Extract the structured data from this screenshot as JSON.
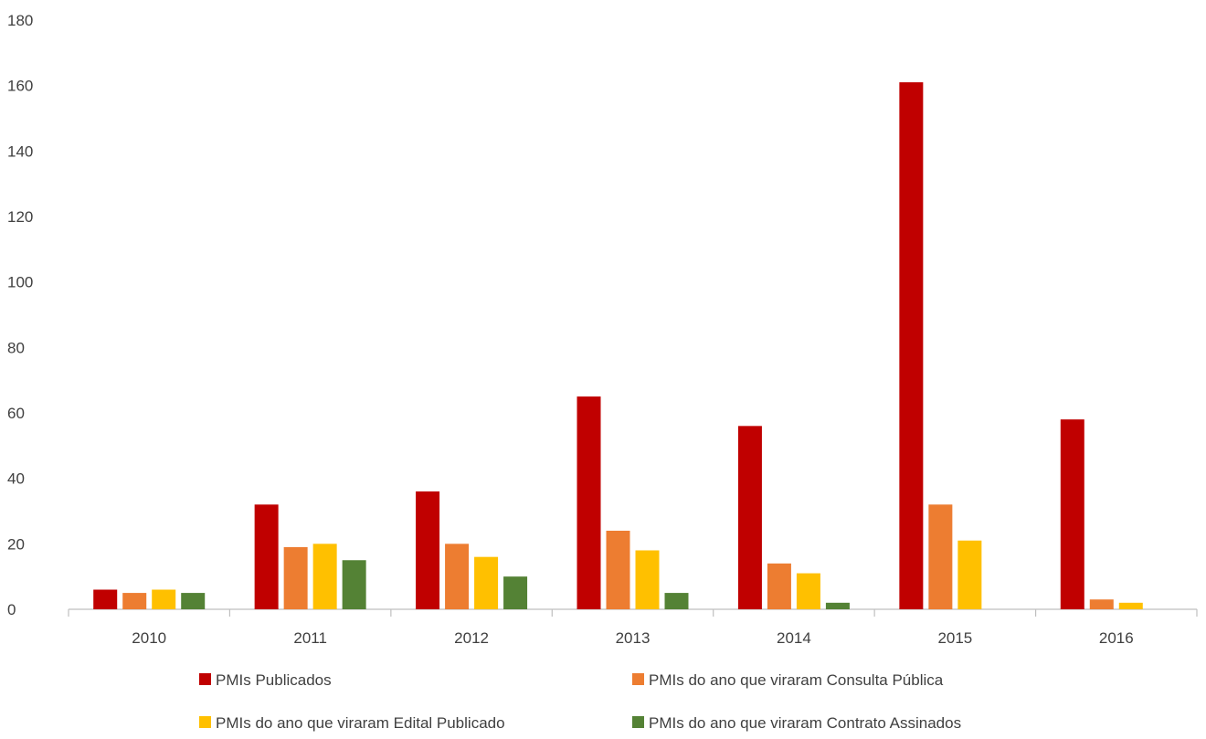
{
  "chart_data": {
    "type": "bar",
    "title": "",
    "xlabel": "",
    "ylabel": "",
    "ylim": [
      0,
      180
    ],
    "yticks": [
      0,
      20,
      40,
      60,
      80,
      100,
      120,
      140,
      160,
      180
    ],
    "grid": false,
    "legend_position": "bottom",
    "categories": [
      "2010",
      "2011",
      "2012",
      "2013",
      "2014",
      "2015",
      "2016"
    ],
    "series": [
      {
        "name": "PMIs Publicados",
        "color": "#C00000",
        "values": [
          6,
          32,
          36,
          65,
          56,
          161,
          58
        ]
      },
      {
        "name": "PMIs  do ano que viraram Consulta Pública",
        "color": "#ED7D31",
        "values": [
          5,
          19,
          20,
          24,
          14,
          32,
          3
        ]
      },
      {
        "name": "PMIs  do ano que viraram Edital Publicado",
        "color": "#FFC000",
        "values": [
          6,
          20,
          16,
          18,
          11,
          21,
          2
        ]
      },
      {
        "name": "PMIs  do ano que viraram Contrato Assinados",
        "color": "#548235",
        "values": [
          5,
          15,
          10,
          5,
          2,
          0,
          0
        ]
      }
    ]
  }
}
